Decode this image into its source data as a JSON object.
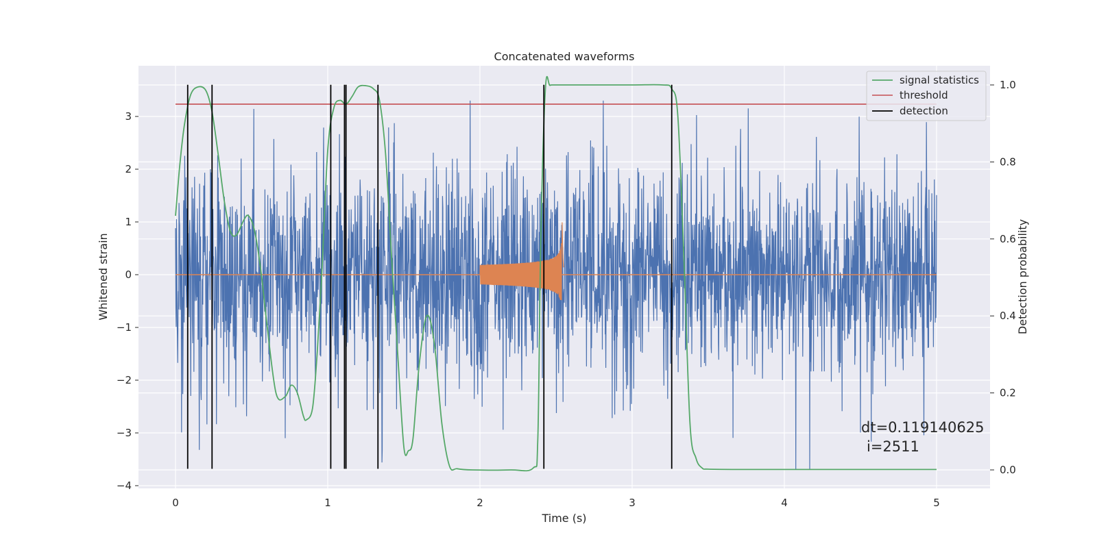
{
  "chart_data": {
    "type": "line",
    "title": "Concatenated waveforms",
    "xlabel": "Time (s)",
    "ylabel": "Whitened strain",
    "y2label": "Detection probability",
    "xlim": [
      -0.25,
      5.35
    ],
    "ylim": [
      -4.05,
      3.95
    ],
    "y2lim": [
      -0.045,
      1.035
    ],
    "xticks": [
      0,
      1,
      2,
      3,
      4,
      5
    ],
    "yticks": [
      -4,
      -3,
      -2,
      -1,
      0,
      1,
      2,
      3
    ],
    "y2ticks": [
      0.0,
      0.2,
      0.4,
      0.6,
      0.8,
      1.0
    ],
    "xtick_labels": [
      "0",
      "1",
      "2",
      "3",
      "4",
      "5"
    ],
    "ytick_labels": [
      "−4",
      "−3",
      "−2",
      "−1",
      "0",
      "1",
      "2",
      "3"
    ],
    "y2tick_labels": [
      "0.0",
      "0.2",
      "0.4",
      "0.6",
      "0.8",
      "1.0"
    ],
    "grid": true,
    "legend_position": "top-right",
    "legend": [
      "signal statistics",
      "threshold",
      "detection"
    ],
    "colors": {
      "noise": "#4c72b0",
      "waveform": "#dd8452",
      "signal_statistics": "#55a868",
      "threshold": "#c44e52",
      "detection": "#000000",
      "axes_bg": "#eaeaf2"
    },
    "series": [
      {
        "name": "signal statistics",
        "axis": "right",
        "x": [
          0.0,
          0.03,
          0.06,
          0.1,
          0.15,
          0.2,
          0.24,
          0.28,
          0.32,
          0.36,
          0.4,
          0.45,
          0.48,
          0.52,
          0.56,
          0.6,
          0.66,
          0.72,
          0.76,
          0.8,
          0.84,
          0.86,
          0.9,
          0.93,
          0.96,
          1.0,
          1.04,
          1.08,
          1.12,
          1.16,
          1.2,
          1.25,
          1.3,
          1.34,
          1.38,
          1.42,
          1.46,
          1.5,
          1.53,
          1.56,
          1.6,
          1.65,
          1.7,
          1.75,
          1.8,
          1.85,
          1.95,
          2.2,
          2.35,
          2.38,
          2.4,
          2.43,
          2.46,
          2.5,
          2.7,
          3.0,
          3.2,
          3.26,
          3.3,
          3.34,
          3.38,
          3.42,
          3.46,
          3.5,
          3.7,
          4.0,
          4.5,
          5.0
        ],
        "y": [
          0.66,
          0.8,
          0.9,
          0.975,
          0.995,
          0.985,
          0.93,
          0.82,
          0.7,
          0.62,
          0.61,
          0.65,
          0.66,
          0.62,
          0.52,
          0.38,
          0.2,
          0.19,
          0.22,
          0.2,
          0.14,
          0.13,
          0.16,
          0.3,
          0.5,
          0.83,
          0.94,
          0.96,
          0.95,
          0.97,
          0.995,
          0.998,
          0.99,
          0.96,
          0.82,
          0.55,
          0.3,
          0.06,
          0.05,
          0.08,
          0.27,
          0.4,
          0.33,
          0.12,
          0.01,
          0.003,
          0.0,
          0.0,
          0.005,
          0.08,
          0.6,
          0.99,
          0.999,
          1.0,
          1.0,
          1.0,
          1.0,
          0.99,
          0.92,
          0.55,
          0.12,
          0.03,
          0.005,
          0.002,
          0.001,
          0.001,
          0.001,
          0.001
        ]
      },
      {
        "name": "threshold",
        "axis": "right",
        "x": [
          0,
          5
        ],
        "y": [
          0.95,
          0.95
        ]
      },
      {
        "name": "detection",
        "type": "vlines",
        "x": [
          0.08,
          0.24,
          1.02,
          1.11,
          1.12,
          1.33,
          2.42,
          3.26
        ],
        "ymin": -3.68,
        "ymax": 3.6
      },
      {
        "type": "noise",
        "axis": "left",
        "x_range": [
          0,
          5
        ],
        "amplitude_range": [
          -3.7,
          3.3
        ]
      },
      {
        "type": "chirp",
        "axis": "left",
        "x_range": [
          2.0,
          2.55
        ],
        "peak_time": 2.54,
        "peak_amplitude": 1.15
      }
    ],
    "annotations": [
      "dt=0.119140625",
      "i=2511"
    ]
  }
}
